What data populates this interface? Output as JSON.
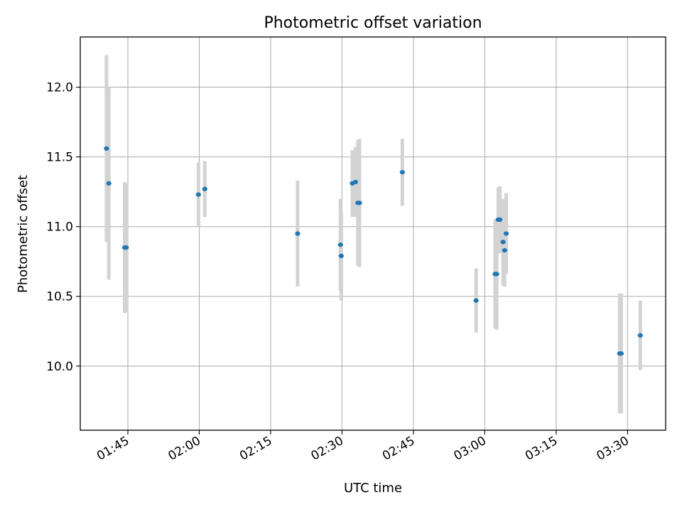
{
  "chart_data": {
    "type": "scatter",
    "title": "Photometric offset variation",
    "xlabel": "UTC time",
    "ylabel": "Photometric offset",
    "xlim": [
      "01:35",
      "03:38"
    ],
    "ylim": [
      9.54,
      12.36
    ],
    "xticks": [
      "01:45",
      "02:00",
      "02:15",
      "02:30",
      "02:45",
      "03:00",
      "03:15",
      "03:30"
    ],
    "yticks": [
      10.0,
      10.5,
      11.0,
      11.5,
      12.0
    ],
    "grid": true,
    "marker_color": "#1f77b4",
    "errorbar_color": "#d3d3d3",
    "series": [
      {
        "points": [
          {
            "x": "01:40:30",
            "y": 11.56,
            "err": 0.67
          },
          {
            "x": "01:41:00",
            "y": 11.31,
            "err": 0.69
          },
          {
            "x": "01:44:20",
            "y": 10.85,
            "err": 0.47
          },
          {
            "x": "01:44:40",
            "y": 10.85,
            "err": 0.46
          },
          {
            "x": "01:59:50",
            "y": 11.23,
            "err": 0.23
          },
          {
            "x": "02:01:10",
            "y": 11.27,
            "err": 0.2
          },
          {
            "x": "02:20:40",
            "y": 10.95,
            "err": 0.38
          },
          {
            "x": "02:29:40",
            "y": 10.87,
            "err": 0.33
          },
          {
            "x": "02:29:50",
            "y": 10.79,
            "err": 0.32
          },
          {
            "x": "02:32:10",
            "y": 11.31,
            "err": 0.24
          },
          {
            "x": "02:32:50",
            "y": 11.32,
            "err": 0.25
          },
          {
            "x": "02:33:20",
            "y": 11.17,
            "err": 0.45
          },
          {
            "x": "02:33:40",
            "y": 11.17,
            "err": 0.46
          },
          {
            "x": "02:42:40",
            "y": 11.39,
            "err": 0.24
          },
          {
            "x": "02:58:10",
            "y": 10.47,
            "err": 0.23
          },
          {
            "x": "03:02:10",
            "y": 10.66,
            "err": 0.39
          },
          {
            "x": "03:02:30",
            "y": 10.66,
            "err": 0.4
          },
          {
            "x": "03:02:50",
            "y": 11.05,
            "err": 0.23
          },
          {
            "x": "03:03:10",
            "y": 11.05,
            "err": 0.24
          },
          {
            "x": "03:03:50",
            "y": 10.89,
            "err": 0.31
          },
          {
            "x": "03:04:10",
            "y": 10.83,
            "err": 0.26
          },
          {
            "x": "03:04:30",
            "y": 10.95,
            "err": 0.29
          },
          {
            "x": "03:28:20",
            "y": 10.09,
            "err": 0.43
          },
          {
            "x": "03:28:40",
            "y": 10.09,
            "err": 0.43
          },
          {
            "x": "03:32:40",
            "y": 10.22,
            "err": 0.25
          }
        ]
      }
    ]
  }
}
